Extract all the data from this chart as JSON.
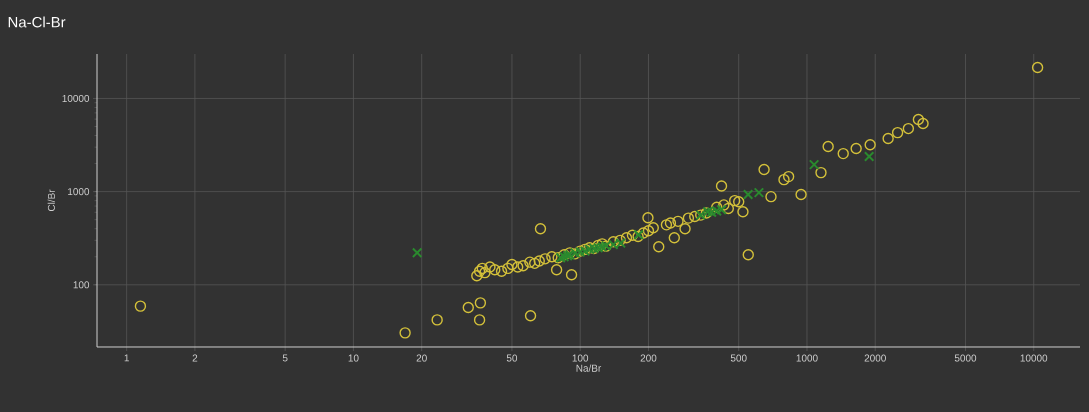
{
  "chart_data": {
    "type": "scatter",
    "title": "Na-Cl-Br",
    "xlabel": "Na/Br",
    "ylabel": "Cl/Br",
    "log": "xy",
    "grid": true,
    "xlim": [
      0.74,
      16000
    ],
    "ylim": [
      21.5,
      30000
    ],
    "xticks": [
      1,
      2,
      5,
      10,
      20,
      50,
      100,
      200,
      500,
      1000,
      2000,
      5000,
      10000
    ],
    "yticks": [
      100,
      1000,
      10000
    ],
    "series": [
      {
        "color": "#d4c13a",
        "marker": "circle",
        "x": [
          1.15,
          16.9,
          23.4,
          32.1,
          36.3,
          36,
          60.4,
          66.8,
          91.6,
          78.7,
          35,
          36,
          37,
          38,
          40,
          42,
          45,
          48,
          50,
          53,
          56,
          60,
          63,
          66,
          70,
          75,
          80,
          85,
          90,
          95,
          100,
          105,
          110,
          115,
          120,
          125,
          130,
          140,
          150,
          160,
          170,
          180,
          190,
          200,
          199,
          210,
          222,
          240,
          260,
          250,
          270,
          290,
          300,
          320,
          340,
          360,
          400,
          420,
          430,
          450,
          480,
          500,
          522,
          551,
          942,
          647,
          694,
          792,
          830,
          1240,
          1153,
          1445,
          1648,
          1900,
          2280,
          2510,
          2800,
          3100,
          3250,
          10400
        ],
        "values": [
          59,
          30.5,
          42,
          57,
          64,
          42,
          46.5,
          400,
          128,
          145,
          125,
          140,
          150,
          135,
          155,
          145,
          140,
          150,
          165,
          155,
          160,
          175,
          170,
          180,
          190,
          200,
          195,
          210,
          220,
          215,
          230,
          240,
          250,
          245,
          265,
          275,
          260,
          290,
          300,
          320,
          340,
          330,
          360,
          380,
          525,
          410,
          256,
          440,
          320,
          460,
          480,
          400,
          520,
          540,
          560,
          590,
          680,
          1150,
          720,
          660,
          800,
          780,
          609,
          210,
          930,
          1727,
          883,
          1345,
          1450,
          3050,
          1600,
          2560,
          2900,
          3190,
          3715,
          4300,
          4750,
          5940,
          5380,
          21500
        ]
      },
      {
        "color": "#2a8a2e",
        "marker": "cross",
        "x": [
          19.1,
          82,
          85,
          88,
          90,
          95,
          100,
          105,
          110,
          115,
          120,
          125,
          130,
          140,
          151,
          181,
          340,
          365,
          380,
          400,
          420,
          550,
          614,
          1075,
          1880
        ],
        "values": [
          221,
          195,
          200,
          205,
          210,
          220,
          225,
          230,
          240,
          245,
          250,
          255,
          262,
          270,
          280,
          344,
          560,
          609,
          600,
          620,
          640,
          930,
          975,
          1950,
          2380
        ]
      }
    ]
  }
}
